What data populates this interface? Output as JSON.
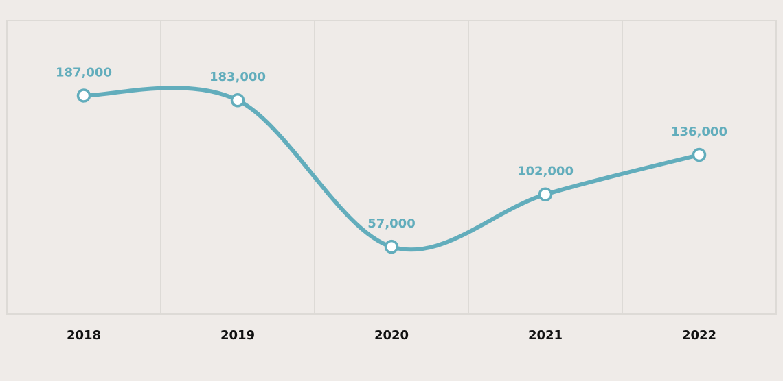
{
  "chart_data": {
    "type": "line",
    "categories": [
      "2018",
      "2019",
      "2020",
      "2021",
      "2022"
    ],
    "series": [
      {
        "values": [
          187000,
          183000,
          57000,
          102000,
          136000
        ]
      }
    ],
    "data_labels": [
      "187,000",
      "183,000",
      "57,000",
      "102,000",
      "136,000"
    ],
    "title": "",
    "xlabel": "",
    "ylabel": "",
    "smooth": true,
    "grid": "vertical",
    "colors": {
      "line": "#62adbc",
      "marker_fill": "#ffffff",
      "grid": "#dddad6",
      "background": "#efebe8",
      "tick_text": "#111111"
    }
  }
}
